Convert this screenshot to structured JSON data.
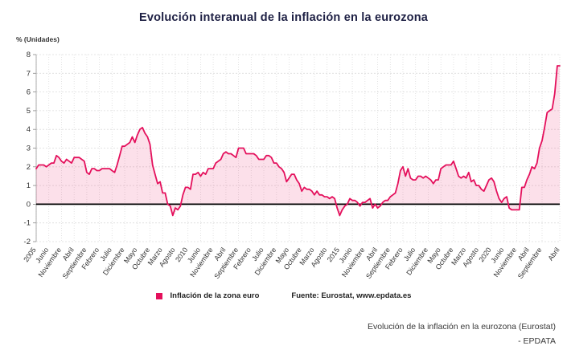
{
  "title": "Evolución interanual de la inflación en la eurozona",
  "y_axis_title": "% (Unidades)",
  "legend": {
    "series_label": "Inflación de la zona euro",
    "source_label": "Fuente: Eurostat, www.epdata.es"
  },
  "caption": {
    "line1": "Evolución de la inflación en la eurozona (Eurostat)",
    "line2": "- EPDATA"
  },
  "chart_data": {
    "type": "line",
    "title": "Evolución interanual de la inflación en la eurozona",
    "xlabel": "",
    "ylabel": "% (Unidades)",
    "ylim": [
      -2,
      8
    ],
    "y_ticks": [
      -2,
      -1,
      0,
      1,
      2,
      3,
      4,
      5,
      6,
      7,
      8
    ],
    "grid": true,
    "legend_position": "bottom",
    "series_name": "Inflación de la zona euro",
    "line_color": "#e4105c",
    "fill_color": "rgba(228,16,92,0.13)",
    "zero_line_color": "#000000",
    "tick_labels": [
      "2005",
      "Junio",
      "Noviembre",
      "Abril",
      "Septiembre",
      "Febrero",
      "Julio",
      "Diciembre",
      "Mayo",
      "Octubre",
      "Marzo",
      "Agosto",
      "2010",
      "Junio",
      "Noviembre",
      "Abril",
      "Septiembre",
      "Febrero",
      "Julio",
      "Diciembre",
      "Mayo",
      "Octubre",
      "Marzo",
      "Agosto",
      "2015",
      "Junio",
      "Noviembre",
      "Abril",
      "Septiembre",
      "Febrero",
      "Julio",
      "Diciembre",
      "Mayo",
      "Octubre",
      "Marzo",
      "Agosto",
      "2020",
      "Junio",
      "Noviembre",
      "Abril",
      "Septiembre",
      "Abril"
    ],
    "tick_step": 5,
    "start_period": "Enero 2005",
    "end_period": "Abril 2022",
    "values": [
      1.9,
      2.1,
      2.1,
      2.1,
      2.0,
      2.1,
      2.2,
      2.2,
      2.6,
      2.5,
      2.3,
      2.2,
      2.4,
      2.3,
      2.2,
      2.5,
      2.5,
      2.5,
      2.4,
      2.3,
      1.7,
      1.6,
      1.9,
      1.9,
      1.8,
      1.8,
      1.9,
      1.9,
      1.9,
      1.9,
      1.8,
      1.7,
      2.1,
      2.6,
      3.1,
      3.1,
      3.2,
      3.3,
      3.6,
      3.3,
      3.7,
      4.0,
      4.1,
      3.8,
      3.6,
      3.2,
      2.1,
      1.6,
      1.1,
      1.2,
      0.6,
      0.6,
      0.0,
      -0.1,
      -0.6,
      -0.2,
      -0.3,
      -0.1,
      0.5,
      0.9,
      0.9,
      0.8,
      1.6,
      1.6,
      1.7,
      1.5,
      1.7,
      1.6,
      1.9,
      1.9,
      1.9,
      2.2,
      2.3,
      2.4,
      2.7,
      2.8,
      2.7,
      2.7,
      2.6,
      2.5,
      3.0,
      3.0,
      3.0,
      2.7,
      2.7,
      2.7,
      2.7,
      2.6,
      2.4,
      2.4,
      2.4,
      2.6,
      2.6,
      2.5,
      2.2,
      2.2,
      2.0,
      1.9,
      1.7,
      1.2,
      1.4,
      1.6,
      1.6,
      1.3,
      1.1,
      0.7,
      0.9,
      0.8,
      0.8,
      0.7,
      0.5,
      0.7,
      0.5,
      0.5,
      0.4,
      0.4,
      0.3,
      0.4,
      0.3,
      -0.2,
      -0.6,
      -0.3,
      -0.1,
      0.0,
      0.3,
      0.2,
      0.2,
      0.1,
      -0.1,
      0.1,
      0.1,
      0.2,
      0.3,
      -0.2,
      0.0,
      -0.2,
      -0.1,
      0.1,
      0.2,
      0.2,
      0.4,
      0.5,
      0.6,
      1.1,
      1.8,
      2.0,
      1.5,
      1.9,
      1.4,
      1.3,
      1.3,
      1.5,
      1.5,
      1.4,
      1.5,
      1.4,
      1.3,
      1.1,
      1.3,
      1.3,
      1.9,
      2.0,
      2.1,
      2.1,
      2.1,
      2.3,
      1.9,
      1.5,
      1.4,
      1.5,
      1.4,
      1.7,
      1.2,
      1.3,
      1.0,
      1.0,
      0.8,
      0.7,
      1.0,
      1.3,
      1.4,
      1.2,
      0.7,
      0.3,
      0.1,
      0.3,
      0.4,
      -0.2,
      -0.3,
      -0.3,
      -0.3,
      -0.3,
      0.9,
      0.9,
      1.3,
      1.6,
      2.0,
      1.9,
      2.2,
      3.0,
      3.4,
      4.1,
      4.9,
      5.0,
      5.1,
      5.9,
      7.4,
      7.4
    ]
  }
}
